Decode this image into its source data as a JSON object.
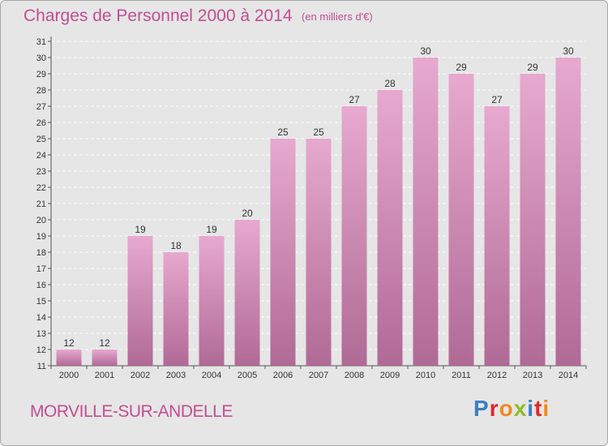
{
  "title": "Charges de Personnel 2000 à 2014",
  "subtitle": "(en milliers d'€)",
  "commune": "MORVILLE-SUR-ANDELLE",
  "logo": {
    "text": "Proxiti",
    "letters": [
      {
        "ch": "P",
        "color": "#3a7ec0"
      },
      {
        "ch": "r",
        "color": "#e0262a"
      },
      {
        "ch": "o",
        "color": "#f08a1c"
      },
      {
        "ch": "x",
        "color": "#8cbd2c"
      },
      {
        "ch": "i",
        "color": "#3a7ec0"
      },
      {
        "ch": "t",
        "color": "#e0262a"
      },
      {
        "ch": "i",
        "color": "#f08a1c"
      }
    ]
  },
  "colors": {
    "title": "#c24e93",
    "bar_top": "#e7a9cf",
    "bar_bottom": "#b06a96",
    "plot_bg": "#e6e6e6",
    "grid": "#ffffff"
  },
  "chart_data": {
    "type": "bar",
    "categories": [
      "2000",
      "2001",
      "2002",
      "2003",
      "2004",
      "2005",
      "2006",
      "2007",
      "2008",
      "2009",
      "2010",
      "2011",
      "2012",
      "2013",
      "2014"
    ],
    "values": [
      12,
      12,
      19,
      18,
      19,
      20,
      25,
      25,
      27,
      28,
      30,
      29,
      27,
      29,
      30
    ],
    "ylim": [
      11,
      31
    ],
    "yticks": [
      11,
      12,
      13,
      14,
      15,
      16,
      17,
      18,
      19,
      20,
      21,
      22,
      23,
      24,
      25,
      26,
      27,
      28,
      29,
      30,
      31
    ],
    "grid": true,
    "data_labels": true
  }
}
